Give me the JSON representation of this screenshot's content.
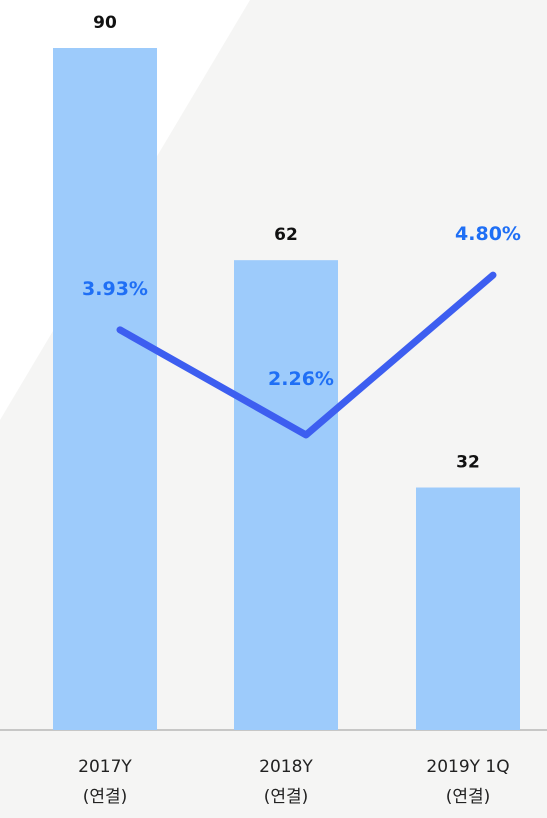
{
  "chart_data": {
    "type": "bar",
    "categories": [
      "2017Y\n(연결)",
      "2018Y\n(연결)",
      "2019Y 1Q\n(연결)"
    ],
    "series": [
      {
        "type": "bar",
        "color": "#9dcbfb",
        "values": [
          90,
          62,
          32
        ]
      },
      {
        "type": "line",
        "axis": "y2",
        "color": "#3d5ef0",
        "label_color": "#1f6ff5",
        "values": [
          3.93,
          2.26,
          4.8
        ],
        "value_labels": [
          "3.93%",
          "2.26%",
          "4.80%"
        ]
      }
    ],
    "ylim": [
      0,
      90
    ],
    "y2lim": [
      -2.43,
      8.41
    ]
  }
}
